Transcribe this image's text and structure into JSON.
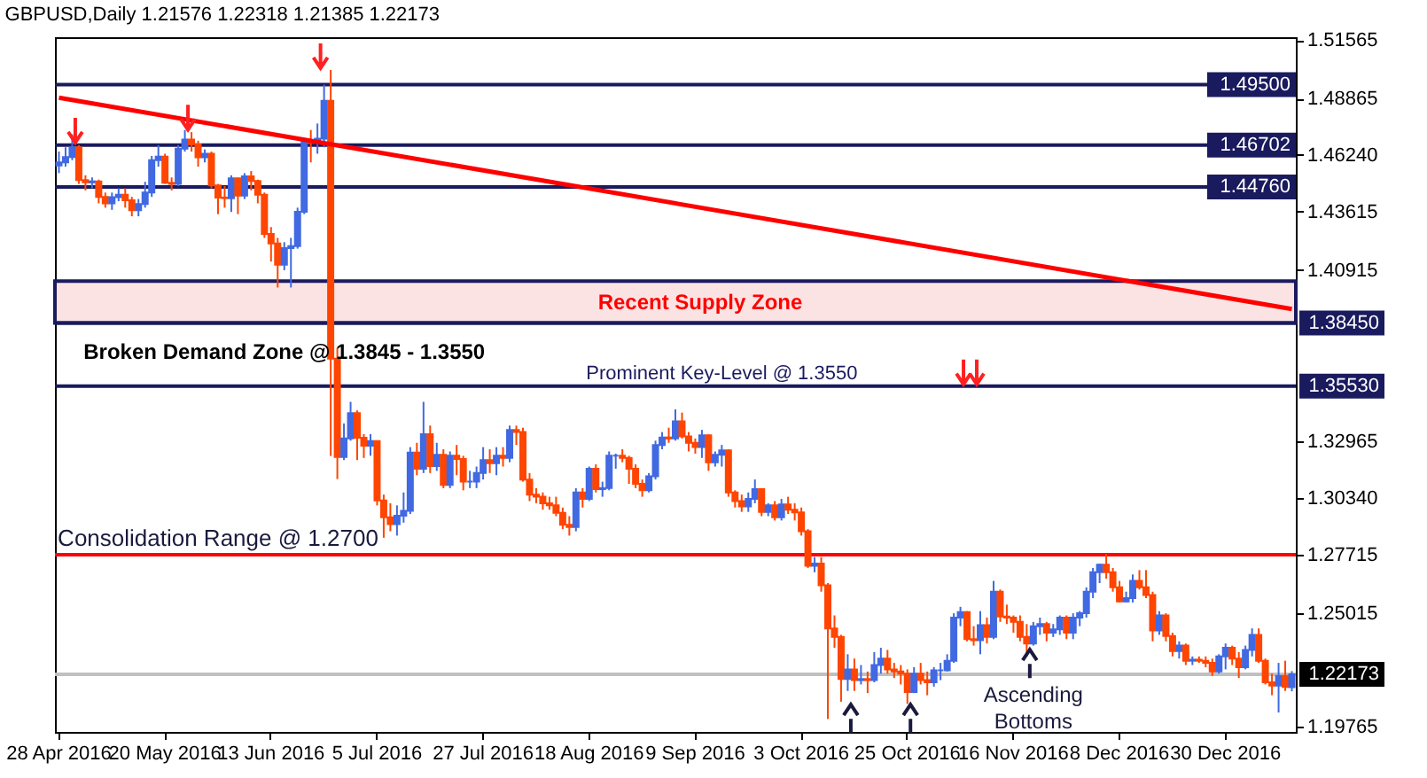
{
  "chart_data": {
    "type": "candlestick",
    "title": "GBPUSD,Daily  1.21576 1.22318 1.21385 1.22173",
    "categories": [
      "28 Apr 2016",
      null,
      null,
      null,
      null,
      null,
      null,
      null,
      null,
      null,
      null,
      null,
      null,
      null,
      null,
      null,
      "20 May 2016",
      null,
      null,
      null,
      null,
      null,
      null,
      null,
      null,
      null,
      null,
      null,
      null,
      null,
      null,
      null,
      "13 Jun 2016",
      null,
      null,
      null,
      null,
      null,
      null,
      null,
      null,
      null,
      null,
      null,
      null,
      null,
      null,
      null,
      "5 Jul 2016",
      null,
      null,
      null,
      null,
      null,
      null,
      null,
      null,
      null,
      null,
      null,
      null,
      null,
      null,
      null,
      "27 Jul 2016",
      null,
      null,
      null,
      null,
      null,
      null,
      null,
      null,
      null,
      null,
      null,
      null,
      null,
      null,
      null,
      "18 Aug 2016",
      null,
      null,
      null,
      null,
      null,
      null,
      null,
      null,
      null,
      null,
      null,
      null,
      null,
      null,
      null,
      "9 Sep 2016",
      null,
      null,
      null,
      null,
      null,
      null,
      null,
      null,
      null,
      null,
      null,
      null,
      null,
      null,
      null,
      "3 Oct 2016",
      null,
      null,
      null,
      null,
      null,
      null,
      null,
      null,
      null,
      null,
      null,
      null,
      null,
      null,
      null,
      "25 Oct 2016",
      null,
      null,
      null,
      null,
      null,
      null,
      null,
      null,
      null,
      null,
      null,
      null,
      null,
      null,
      null,
      "16 Nov 2016",
      null,
      null,
      null,
      null,
      null,
      null,
      null,
      null,
      null,
      null,
      null,
      null,
      null,
      null,
      null,
      "8 Dec 2016",
      null,
      null,
      null,
      null,
      null,
      null,
      null,
      null,
      null,
      null,
      null,
      null,
      null,
      null,
      null,
      "30 Dec 2016",
      null,
      null,
      null,
      null,
      null,
      null,
      null,
      null,
      null,
      null
    ],
    "ohlc": [
      [
        1.4575,
        1.464,
        1.454,
        1.459
      ],
      [
        1.459,
        1.466,
        1.457,
        1.4615
      ],
      [
        1.4615,
        1.472,
        1.46,
        1.466
      ],
      [
        1.466,
        1.467,
        1.449,
        1.4508
      ],
      [
        1.4508,
        1.453,
        1.446,
        1.4497
      ],
      [
        1.4497,
        1.452,
        1.447,
        1.4502
      ],
      [
        1.4502,
        1.451,
        1.44,
        1.443
      ],
      [
        1.443,
        1.445,
        1.438,
        1.44
      ],
      [
        1.44,
        1.445,
        1.437,
        1.4429
      ],
      [
        1.4429,
        1.447,
        1.441,
        1.444
      ],
      [
        1.444,
        1.447,
        1.438,
        1.4414
      ],
      [
        1.4414,
        1.443,
        1.434,
        1.4368
      ],
      [
        1.4368,
        1.442,
        1.434,
        1.4397
      ],
      [
        1.4397,
        1.45,
        1.438,
        1.445
      ],
      [
        1.445,
        1.462,
        1.443,
        1.46
      ],
      [
        1.46,
        1.467,
        1.457,
        1.4617
      ],
      [
        1.4617,
        1.463,
        1.449,
        1.4495
      ],
      [
        1.4495,
        1.452,
        1.446,
        1.449
      ],
      [
        1.449,
        1.467,
        1.448,
        1.4654
      ],
      [
        1.4654,
        1.474,
        1.464,
        1.4696
      ],
      [
        1.4696,
        1.473,
        1.464,
        1.4673
      ],
      [
        1.4673,
        1.469,
        1.457,
        1.4613
      ],
      [
        1.4613,
        1.465,
        1.459,
        1.463
      ],
      [
        1.463,
        1.464,
        1.447,
        1.4483
      ],
      [
        1.4483,
        1.449,
        1.435,
        1.4427
      ],
      [
        1.4427,
        1.448,
        1.438,
        1.4424
      ],
      [
        1.4424,
        1.453,
        1.436,
        1.4516
      ],
      [
        1.4516,
        1.452,
        1.435,
        1.4436
      ],
      [
        1.4436,
        1.454,
        1.442,
        1.4525
      ],
      [
        1.4525,
        1.455,
        1.446,
        1.4504
      ],
      [
        1.4504,
        1.451,
        1.44,
        1.444
      ],
      [
        1.444,
        1.445,
        1.424,
        1.4258
      ],
      [
        1.4258,
        1.429,
        1.413,
        1.4214
      ],
      [
        1.4214,
        1.424,
        1.401,
        1.4115
      ],
      [
        1.4115,
        1.422,
        1.409,
        1.4193
      ],
      [
        1.4193,
        1.424,
        1.401,
        1.4202
      ],
      [
        1.4202,
        1.438,
        1.419,
        1.4361
      ],
      [
        1.4361,
        1.47,
        1.435,
        1.4685
      ],
      [
        1.4685,
        1.474,
        1.459,
        1.468
      ],
      [
        1.468,
        1.477,
        1.463,
        1.47
      ],
      [
        1.47,
        1.495,
        1.466,
        1.4875
      ],
      [
        1.4875,
        1.5018,
        1.3229,
        1.368
      ],
      [
        1.368,
        1.373,
        1.3122,
        1.3224
      ],
      [
        1.3224,
        1.338,
        1.321,
        1.331
      ],
      [
        1.331,
        1.348,
        1.33,
        1.3428
      ],
      [
        1.3428,
        1.344,
        1.321,
        1.3314
      ],
      [
        1.3314,
        1.333,
        1.322,
        1.3277
      ],
      [
        1.3277,
        1.333,
        1.323,
        1.3298
      ],
      [
        1.3298,
        1.33,
        1.3,
        1.3023
      ],
      [
        1.3023,
        1.305,
        1.285,
        1.2945
      ],
      [
        1.2945,
        1.301,
        1.288,
        1.2913
      ],
      [
        1.2913,
        1.3,
        1.286,
        1.2952
      ],
      [
        1.2952,
        1.306,
        1.292,
        1.2975
      ],
      [
        1.2975,
        1.327,
        1.296,
        1.3245
      ],
      [
        1.3245,
        1.329,
        1.314,
        1.317
      ],
      [
        1.317,
        1.348,
        1.315,
        1.333
      ],
      [
        1.333,
        1.337,
        1.315,
        1.3182
      ],
      [
        1.3182,
        1.329,
        1.316,
        1.3235
      ],
      [
        1.3235,
        1.326,
        1.308,
        1.3095
      ],
      [
        1.3095,
        1.325,
        1.308,
        1.323
      ],
      [
        1.323,
        1.328,
        1.314,
        1.3215
      ],
      [
        1.3215,
        1.323,
        1.307,
        1.311
      ],
      [
        1.311,
        1.316,
        1.308,
        1.311
      ],
      [
        1.311,
        1.318,
        1.308,
        1.315
      ],
      [
        1.315,
        1.327,
        1.312,
        1.321
      ],
      [
        1.321,
        1.326,
        1.315,
        1.3195
      ],
      [
        1.3195,
        1.327,
        1.314,
        1.323
      ],
      [
        1.323,
        1.327,
        1.318,
        1.322
      ],
      [
        1.322,
        1.337,
        1.32,
        1.335
      ],
      [
        1.335,
        1.337,
        1.328,
        1.334
      ],
      [
        1.334,
        1.336,
        1.311,
        1.312
      ],
      [
        1.312,
        1.315,
        1.302,
        1.305
      ],
      [
        1.305,
        1.308,
        1.301,
        1.304
      ],
      [
        1.304,
        1.306,
        1.298,
        1.301
      ],
      [
        1.301,
        1.304,
        1.298,
        1.3
      ],
      [
        1.3,
        1.304,
        1.295,
        1.2965
      ],
      [
        1.2965,
        1.299,
        1.289,
        1.291
      ],
      [
        1.291,
        1.295,
        1.286,
        1.29
      ],
      [
        1.29,
        1.308,
        1.288,
        1.306
      ],
      [
        1.306,
        1.308,
        1.299,
        1.303
      ],
      [
        1.303,
        1.318,
        1.302,
        1.317
      ],
      [
        1.317,
        1.319,
        1.306,
        1.3075
      ],
      [
        1.3075,
        1.311,
        1.304,
        1.308
      ],
      [
        1.308,
        1.325,
        1.307,
        1.323
      ],
      [
        1.323,
        1.324,
        1.317,
        1.323
      ],
      [
        1.323,
        1.326,
        1.32,
        1.322
      ],
      [
        1.322,
        1.323,
        1.31,
        1.317
      ],
      [
        1.317,
        1.319,
        1.308,
        1.31
      ],
      [
        1.31,
        1.312,
        1.304,
        1.307
      ],
      [
        1.307,
        1.315,
        1.306,
        1.3135
      ],
      [
        1.3135,
        1.33,
        1.312,
        1.328
      ],
      [
        1.328,
        1.334,
        1.326,
        1.3315
      ],
      [
        1.3315,
        1.336,
        1.329,
        1.331
      ],
      [
        1.331,
        1.3445,
        1.33,
        1.339
      ],
      [
        1.339,
        1.343,
        1.331,
        1.332
      ],
      [
        1.332,
        1.334,
        1.325,
        1.329
      ],
      [
        1.329,
        1.331,
        1.324,
        1.327
      ],
      [
        1.327,
        1.335,
        1.322,
        1.3325
      ],
      [
        1.3325,
        1.333,
        1.316,
        1.32
      ],
      [
        1.32,
        1.325,
        1.318,
        1.3235
      ],
      [
        1.3235,
        1.328,
        1.318,
        1.3255
      ],
      [
        1.3255,
        1.326,
        1.304,
        1.306
      ],
      [
        1.306,
        1.307,
        1.299,
        1.302
      ],
      [
        1.302,
        1.305,
        1.297,
        1.2995
      ],
      [
        1.2995,
        1.306,
        1.297,
        1.303
      ],
      [
        1.303,
        1.312,
        1.301,
        1.3075
      ],
      [
        1.3075,
        1.308,
        1.295,
        1.297
      ],
      [
        1.297,
        1.301,
        1.295,
        1.3
      ],
      [
        1.3,
        1.302,
        1.293,
        1.2945
      ],
      [
        1.2945,
        1.303,
        1.293,
        1.3005
      ],
      [
        1.3005,
        1.304,
        1.296,
        1.298
      ],
      [
        1.298,
        1.301,
        1.293,
        1.2968
      ],
      [
        1.2968,
        1.299,
        1.286,
        1.288
      ],
      [
        1.288,
        1.289,
        1.271,
        1.272
      ],
      [
        1.272,
        1.276,
        1.269,
        1.273
      ],
      [
        1.273,
        1.276,
        1.26,
        1.263
      ],
      [
        1.263,
        1.264,
        1.201,
        1.243
      ],
      [
        1.243,
        1.249,
        1.234,
        1.239
      ],
      [
        1.239,
        1.24,
        1.209,
        1.2195
      ],
      [
        1.2195,
        1.231,
        1.214,
        1.224
      ],
      [
        1.224,
        1.229,
        1.214,
        1.219
      ],
      [
        1.219,
        1.226,
        1.217,
        1.2195
      ],
      [
        1.2195,
        1.223,
        1.213,
        1.219
      ],
      [
        1.219,
        1.232,
        1.218,
        1.226
      ],
      [
        1.226,
        1.234,
        1.222,
        1.229
      ],
      [
        1.229,
        1.233,
        1.222,
        1.224
      ],
      [
        1.224,
        1.227,
        1.22,
        1.223
      ],
      [
        1.223,
        1.226,
        1.217,
        1.222
      ],
      [
        1.222,
        1.224,
        1.208,
        1.2135
      ],
      [
        1.2135,
        1.225,
        1.213,
        1.222
      ],
      [
        1.222,
        1.227,
        1.217,
        1.219
      ],
      [
        1.219,
        1.223,
        1.212,
        1.218
      ],
      [
        1.218,
        1.225,
        1.216,
        1.2235
      ],
      [
        1.2235,
        1.227,
        1.219,
        1.2235
      ],
      [
        1.2235,
        1.231,
        1.223,
        1.228
      ],
      [
        1.228,
        1.25,
        1.227,
        1.248
      ],
      [
        1.248,
        1.253,
        1.244,
        1.2505
      ],
      [
        1.2505,
        1.251,
        1.237,
        1.238
      ],
      [
        1.238,
        1.244,
        1.235,
        1.2375
      ],
      [
        1.2375,
        1.251,
        1.231,
        1.2445
      ],
      [
        1.2445,
        1.248,
        1.236,
        1.239
      ],
      [
        1.239,
        1.265,
        1.238,
        1.26
      ],
      [
        1.26,
        1.261,
        1.246,
        1.2485
      ],
      [
        1.2485,
        1.254,
        1.245,
        1.248
      ],
      [
        1.248,
        1.249,
        1.241,
        1.246
      ],
      [
        1.246,
        1.249,
        1.237,
        1.239
      ],
      [
        1.239,
        1.245,
        1.23,
        1.236
      ],
      [
        1.236,
        1.246,
        1.235,
        1.244
      ],
      [
        1.244,
        1.248,
        1.24,
        1.245
      ],
      [
        1.245,
        1.246,
        1.237,
        1.241
      ],
      [
        1.241,
        1.245,
        1.239,
        1.2425
      ],
      [
        1.2425,
        1.249,
        1.24,
        1.248
      ],
      [
        1.248,
        1.249,
        1.238,
        1.241
      ],
      [
        1.241,
        1.25,
        1.238,
        1.248
      ],
      [
        1.248,
        1.251,
        1.244,
        1.25
      ],
      [
        1.25,
        1.262,
        1.248,
        1.26
      ],
      [
        1.26,
        1.271,
        1.257,
        1.269
      ],
      [
        1.269,
        1.273,
        1.264,
        1.2725
      ],
      [
        1.2725,
        1.2775,
        1.266,
        1.269
      ],
      [
        1.269,
        1.271,
        1.26,
        1.262
      ],
      [
        1.262,
        1.265,
        1.255,
        1.2555
      ],
      [
        1.2555,
        1.26,
        1.255,
        1.257
      ],
      [
        1.257,
        1.268,
        1.255,
        1.265
      ],
      [
        1.265,
        1.27,
        1.261,
        1.262
      ],
      [
        1.262,
        1.27,
        1.257,
        1.2585
      ],
      [
        1.2585,
        1.26,
        1.237,
        1.242
      ],
      [
        1.242,
        1.251,
        1.24,
        1.249
      ],
      [
        1.249,
        1.25,
        1.237,
        1.2395
      ],
      [
        1.2395,
        1.241,
        1.23,
        1.2325
      ],
      [
        1.2325,
        1.237,
        1.229,
        1.235
      ],
      [
        1.235,
        1.236,
        1.226,
        1.228
      ],
      [
        1.228,
        1.23,
        1.226,
        1.2285
      ],
      [
        1.2285,
        1.23,
        1.227,
        1.228
      ],
      [
        1.228,
        1.23,
        1.225,
        1.227
      ],
      [
        1.227,
        1.229,
        1.221,
        1.223
      ],
      [
        1.223,
        1.231,
        1.222,
        1.23
      ],
      [
        1.23,
        1.236,
        1.224,
        1.234
      ],
      [
        1.234,
        1.235,
        1.226,
        1.229
      ],
      [
        1.229,
        1.232,
        1.22,
        1.225
      ],
      [
        1.225,
        1.235,
        1.224,
        1.233
      ],
      [
        1.233,
        1.243,
        1.23,
        1.24
      ],
      [
        1.24,
        1.243,
        1.227,
        1.228
      ],
      [
        1.228,
        1.229,
        1.217,
        1.218
      ],
      [
        1.218,
        1.222,
        1.212,
        1.2165
      ],
      [
        1.2165,
        1.227,
        1.204,
        1.221
      ],
      [
        1.221,
        1.228,
        1.214,
        1.2158
      ],
      [
        1.21576,
        1.22318,
        1.21385,
        1.22173
      ]
    ],
    "colors": [
      "#4169e1",
      "#4169e1",
      "#4169e1",
      "#ff4500",
      "#ff4500",
      "#4169e1",
      "#ff4500",
      "#ff4500",
      "#4169e1",
      "#4169e1",
      "#ff4500",
      "#ff4500",
      "#4169e1",
      "#4169e1",
      "#4169e1",
      "#4169e1",
      "#ff4500",
      "#ff4500",
      "#4169e1",
      "#4169e1",
      "#ff4500",
      "#ff4500",
      "#4169e1",
      "#ff4500",
      "#ff4500",
      "#ff4500",
      "#4169e1",
      "#ff4500",
      "#4169e1",
      "#ff4500",
      "#ff4500",
      "#ff4500",
      "#ff4500",
      "#ff4500",
      "#4169e1",
      "#4169e1",
      "#4169e1",
      "#4169e1",
      "#ff4500",
      "#4169e1",
      "#4169e1",
      "#ff4500",
      "#ff4500",
      "#4169e1",
      "#4169e1",
      "#ff4500",
      "#ff4500",
      "#4169e1",
      "#ff4500",
      "#ff4500",
      "#ff4500",
      "#4169e1",
      "#4169e1",
      "#4169e1",
      "#ff4500",
      "#4169e1",
      "#ff4500",
      "#4169e1",
      "#ff4500",
      "#4169e1",
      "#ff4500",
      "#ff4500",
      "#4169e1",
      "#4169e1",
      "#4169e1",
      "#ff4500",
      "#4169e1",
      "#ff4500",
      "#4169e1",
      "#ff4500",
      "#ff4500",
      "#ff4500",
      "#ff4500",
      "#ff4500",
      "#ff4500",
      "#ff4500",
      "#ff4500",
      "#ff4500",
      "#4169e1",
      "#ff4500",
      "#4169e1",
      "#ff4500",
      "#4169e1",
      "#4169e1",
      "#4169e1",
      "#ff4500",
      "#ff4500",
      "#ff4500",
      "#ff4500",
      "#4169e1",
      "#4169e1",
      "#4169e1",
      "#ff4500",
      "#4169e1",
      "#ff4500",
      "#ff4500",
      "#ff4500",
      "#4169e1",
      "#ff4500",
      "#4169e1",
      "#4169e1",
      "#ff4500",
      "#ff4500",
      "#ff4500",
      "#4169e1",
      "#4169e1",
      "#ff4500",
      "#4169e1",
      "#ff4500",
      "#4169e1",
      "#ff4500",
      "#ff4500",
      "#ff4500",
      "#ff4500",
      "#4169e1",
      "#ff4500",
      "#ff4500",
      "#ff4500",
      "#ff4500",
      "#4169e1",
      "#ff4500",
      "#4169e1",
      "#ff4500",
      "#4169e1",
      "#4169e1",
      "#ff4500",
      "#ff4500",
      "#ff4500",
      "#ff4500",
      "#4169e1",
      "#ff4500",
      "#ff4500",
      "#4169e1",
      "#4169e1",
      "#4169e1",
      "#4169e1",
      "#4169e1",
      "#ff4500",
      "#ff4500",
      "#4169e1",
      "#ff4500",
      "#4169e1",
      "#ff4500",
      "#ff4500",
      "#ff4500",
      "#ff4500",
      "#ff4500",
      "#4169e1",
      "#4169e1",
      "#ff4500",
      "#4169e1",
      "#4169e1",
      "#ff4500",
      "#4169e1",
      "#4169e1",
      "#4169e1",
      "#4169e1",
      "#4169e1",
      "#ff4500",
      "#ff4500",
      "#ff4500",
      "#4169e1",
      "#4169e1",
      "#ff4500",
      "#ff4500",
      "#ff4500",
      "#4169e1",
      "#ff4500",
      "#ff4500",
      "#4169e1",
      "#ff4500",
      "#4169e1",
      "#ff4500",
      "#ff4500",
      "#ff4500",
      "#4169e1",
      "#4169e1",
      "#ff4500",
      "#ff4500",
      "#4169e1",
      "#4169e1",
      "#ff4500",
      "#ff4500",
      "#ff4500",
      "#4169e1",
      "#ff4500",
      "#4169e1"
    ],
    "series": [
      {
        "type": "line",
        "color": "#ff0000",
        "values": [
          1.489,
          null,
          null,
          null,
          null,
          null,
          null,
          null,
          null,
          null,
          null,
          null,
          null,
          null,
          null,
          null,
          null,
          null,
          null,
          null,
          null,
          null,
          null,
          null,
          null,
          null,
          null,
          null,
          null,
          null,
          null,
          null,
          null,
          null,
          null,
          null,
          null,
          null,
          null,
          null,
          null,
          null,
          null,
          null,
          null,
          null,
          null,
          null,
          null,
          null,
          null,
          null,
          null,
          null,
          null,
          null,
          null,
          null,
          null,
          null,
          null,
          null,
          null,
          null,
          null,
          null,
          null,
          null,
          null,
          null,
          null,
          null,
          null,
          null,
          null,
          null,
          null,
          null,
          null,
          null,
          null,
          null,
          null,
          null,
          null,
          null,
          null,
          null,
          null,
          null,
          null,
          null,
          null,
          null,
          null,
          null,
          null,
          null,
          null,
          null,
          null,
          null,
          null,
          null,
          null,
          null,
          null,
          null,
          null,
          null,
          null,
          null,
          null,
          null,
          null,
          null,
          null,
          null,
          null,
          null,
          null,
          null,
          null,
          null,
          null,
          null,
          null,
          null,
          null,
          null,
          null,
          null,
          null,
          null,
          null,
          null,
          null,
          null,
          null,
          null,
          null,
          null,
          null,
          null,
          null,
          null,
          null,
          null,
          null,
          null,
          null,
          null,
          null,
          null,
          null,
          null,
          null,
          null,
          null,
          null,
          null,
          null,
          null,
          null,
          null,
          null,
          null,
          null,
          null,
          null,
          null,
          null,
          null,
          null,
          null,
          null,
          null,
          null,
          null,
          null,
          null,
          null,
          null,
          null,
          null,
          null,
          1.391
        ]
      }
    ],
    "ylim": [
      1.195,
      1.517
    ],
    "yticks": [
      1.51565,
      1.48865,
      {
        "value": 1.4624,
        "label": "1.46240"
      },
      1.43615,
      1.40915,
      1.32965,
      {
        "value": 1.3034,
        "label": "1.30340"
      },
      1.27715,
      1.25015,
      1.19765
    ],
    "ref_lines": [
      {
        "axis": "y",
        "value": 1.495,
        "color": "#1a1a5e",
        "label": "1.49500"
      },
      {
        "axis": "y",
        "value": 1.46702,
        "color": "#1a1a5e",
        "label": "1.46702"
      },
      {
        "axis": "y",
        "value": 1.4476,
        "color": "#1a1a5e",
        "label": "1.44760"
      },
      {
        "axis": "y",
        "value": 1.3845,
        "color": "#1a1a5e",
        "label": "1.38450"
      },
      {
        "axis": "y",
        "value": 1.3553,
        "color": "#1a1a5e",
        "label": "1.35530"
      },
      {
        "axis": "y",
        "value": 1.27715,
        "color": "#ff0000"
      },
      {
        "axis": "y",
        "value": 1.22173,
        "color": "#c0c0c0",
        "label": "1.22173"
      }
    ],
    "bands": [
      {
        "axis": "y",
        "from": 1.3845,
        "to": 1.404,
        "label": "Recent Supply Zone",
        "color": "#fbe3e3"
      }
    ],
    "annotations": [
      "Broken Demand Zone @ 1.3845 - 1.3550",
      {
        "text": "Prominent Key-Level @ 1.3550",
        "y": 1.3553
      },
      "Ascending Bottoms",
      {
        "text": "Consolidation Range @ 1.2700",
        "y": 1.27715
      }
    ]
  }
}
